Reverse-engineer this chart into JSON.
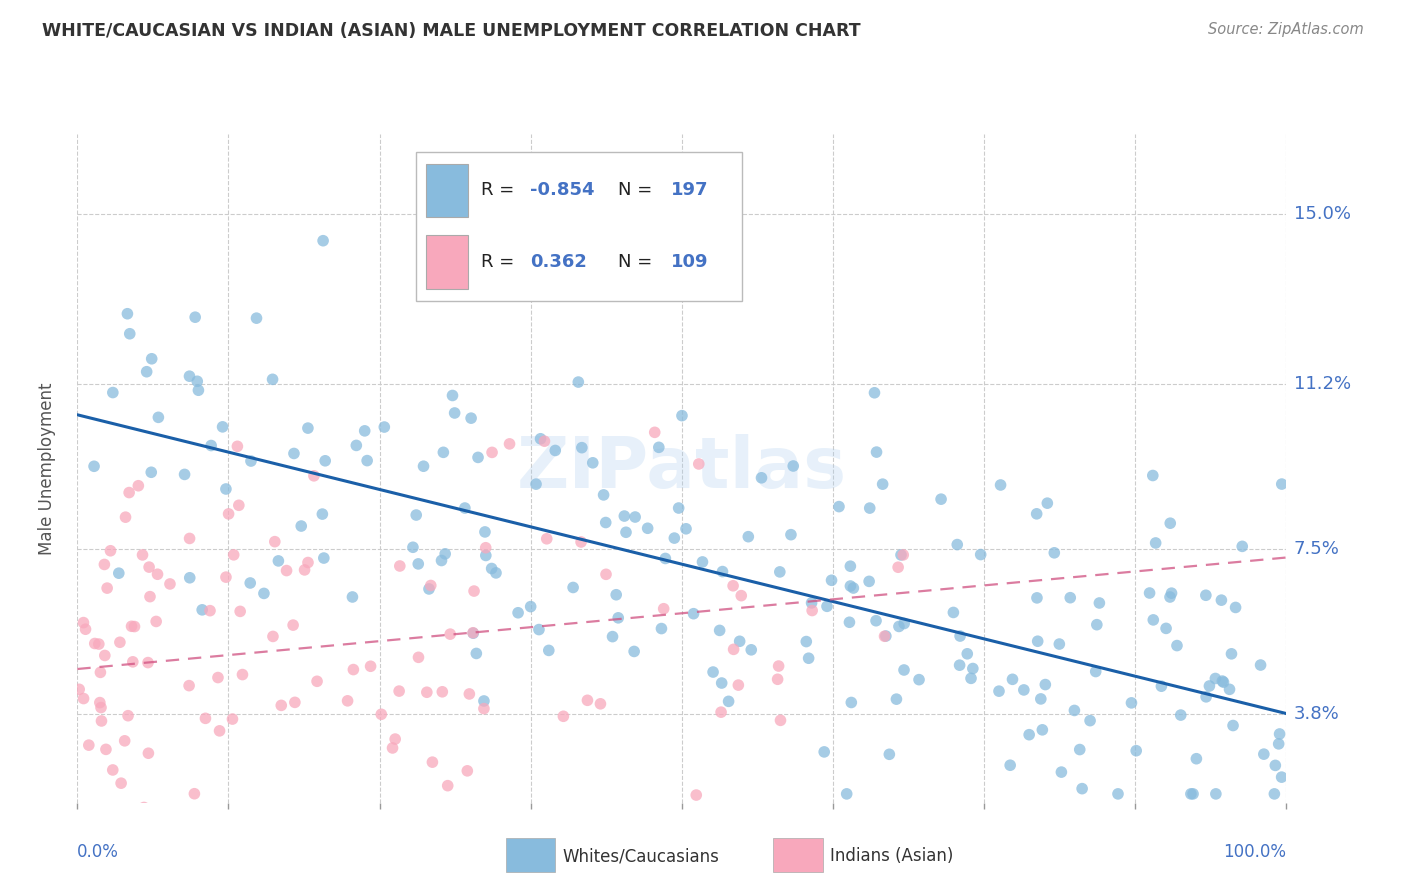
{
  "title": "WHITE/CAUCASIAN VS INDIAN (ASIAN) MALE UNEMPLOYMENT CORRELATION CHART",
  "source": "Source: ZipAtlas.com",
  "ylabel": "Male Unemployment",
  "yticks": [
    0.038,
    0.075,
    0.112,
    0.15
  ],
  "ytick_labels": [
    "3.8%",
    "7.5%",
    "11.2%",
    "15.0%"
  ],
  "xmin": 0.0,
  "xmax": 1.0,
  "ymin": 0.018,
  "ymax": 0.168,
  "blue_color": "#88bbdd",
  "blue_line_color": "#1a5fa8",
  "pink_color": "#f8a8bc",
  "pink_line_color": "#d05080",
  "legend_R_blue": "-0.854",
  "legend_N_blue": "197",
  "legend_R_pink": "0.362",
  "legend_N_pink": "109",
  "legend_label_blue": "Whites/Caucasians",
  "legend_label_pink": "Indians (Asian)",
  "watermark": "ZIPatlas",
  "blue_line_start_y": 0.105,
  "blue_line_end_y": 0.038,
  "pink_line_start_y": 0.048,
  "pink_line_end_y": 0.073,
  "blue_seed": 42,
  "pink_seed": 77
}
